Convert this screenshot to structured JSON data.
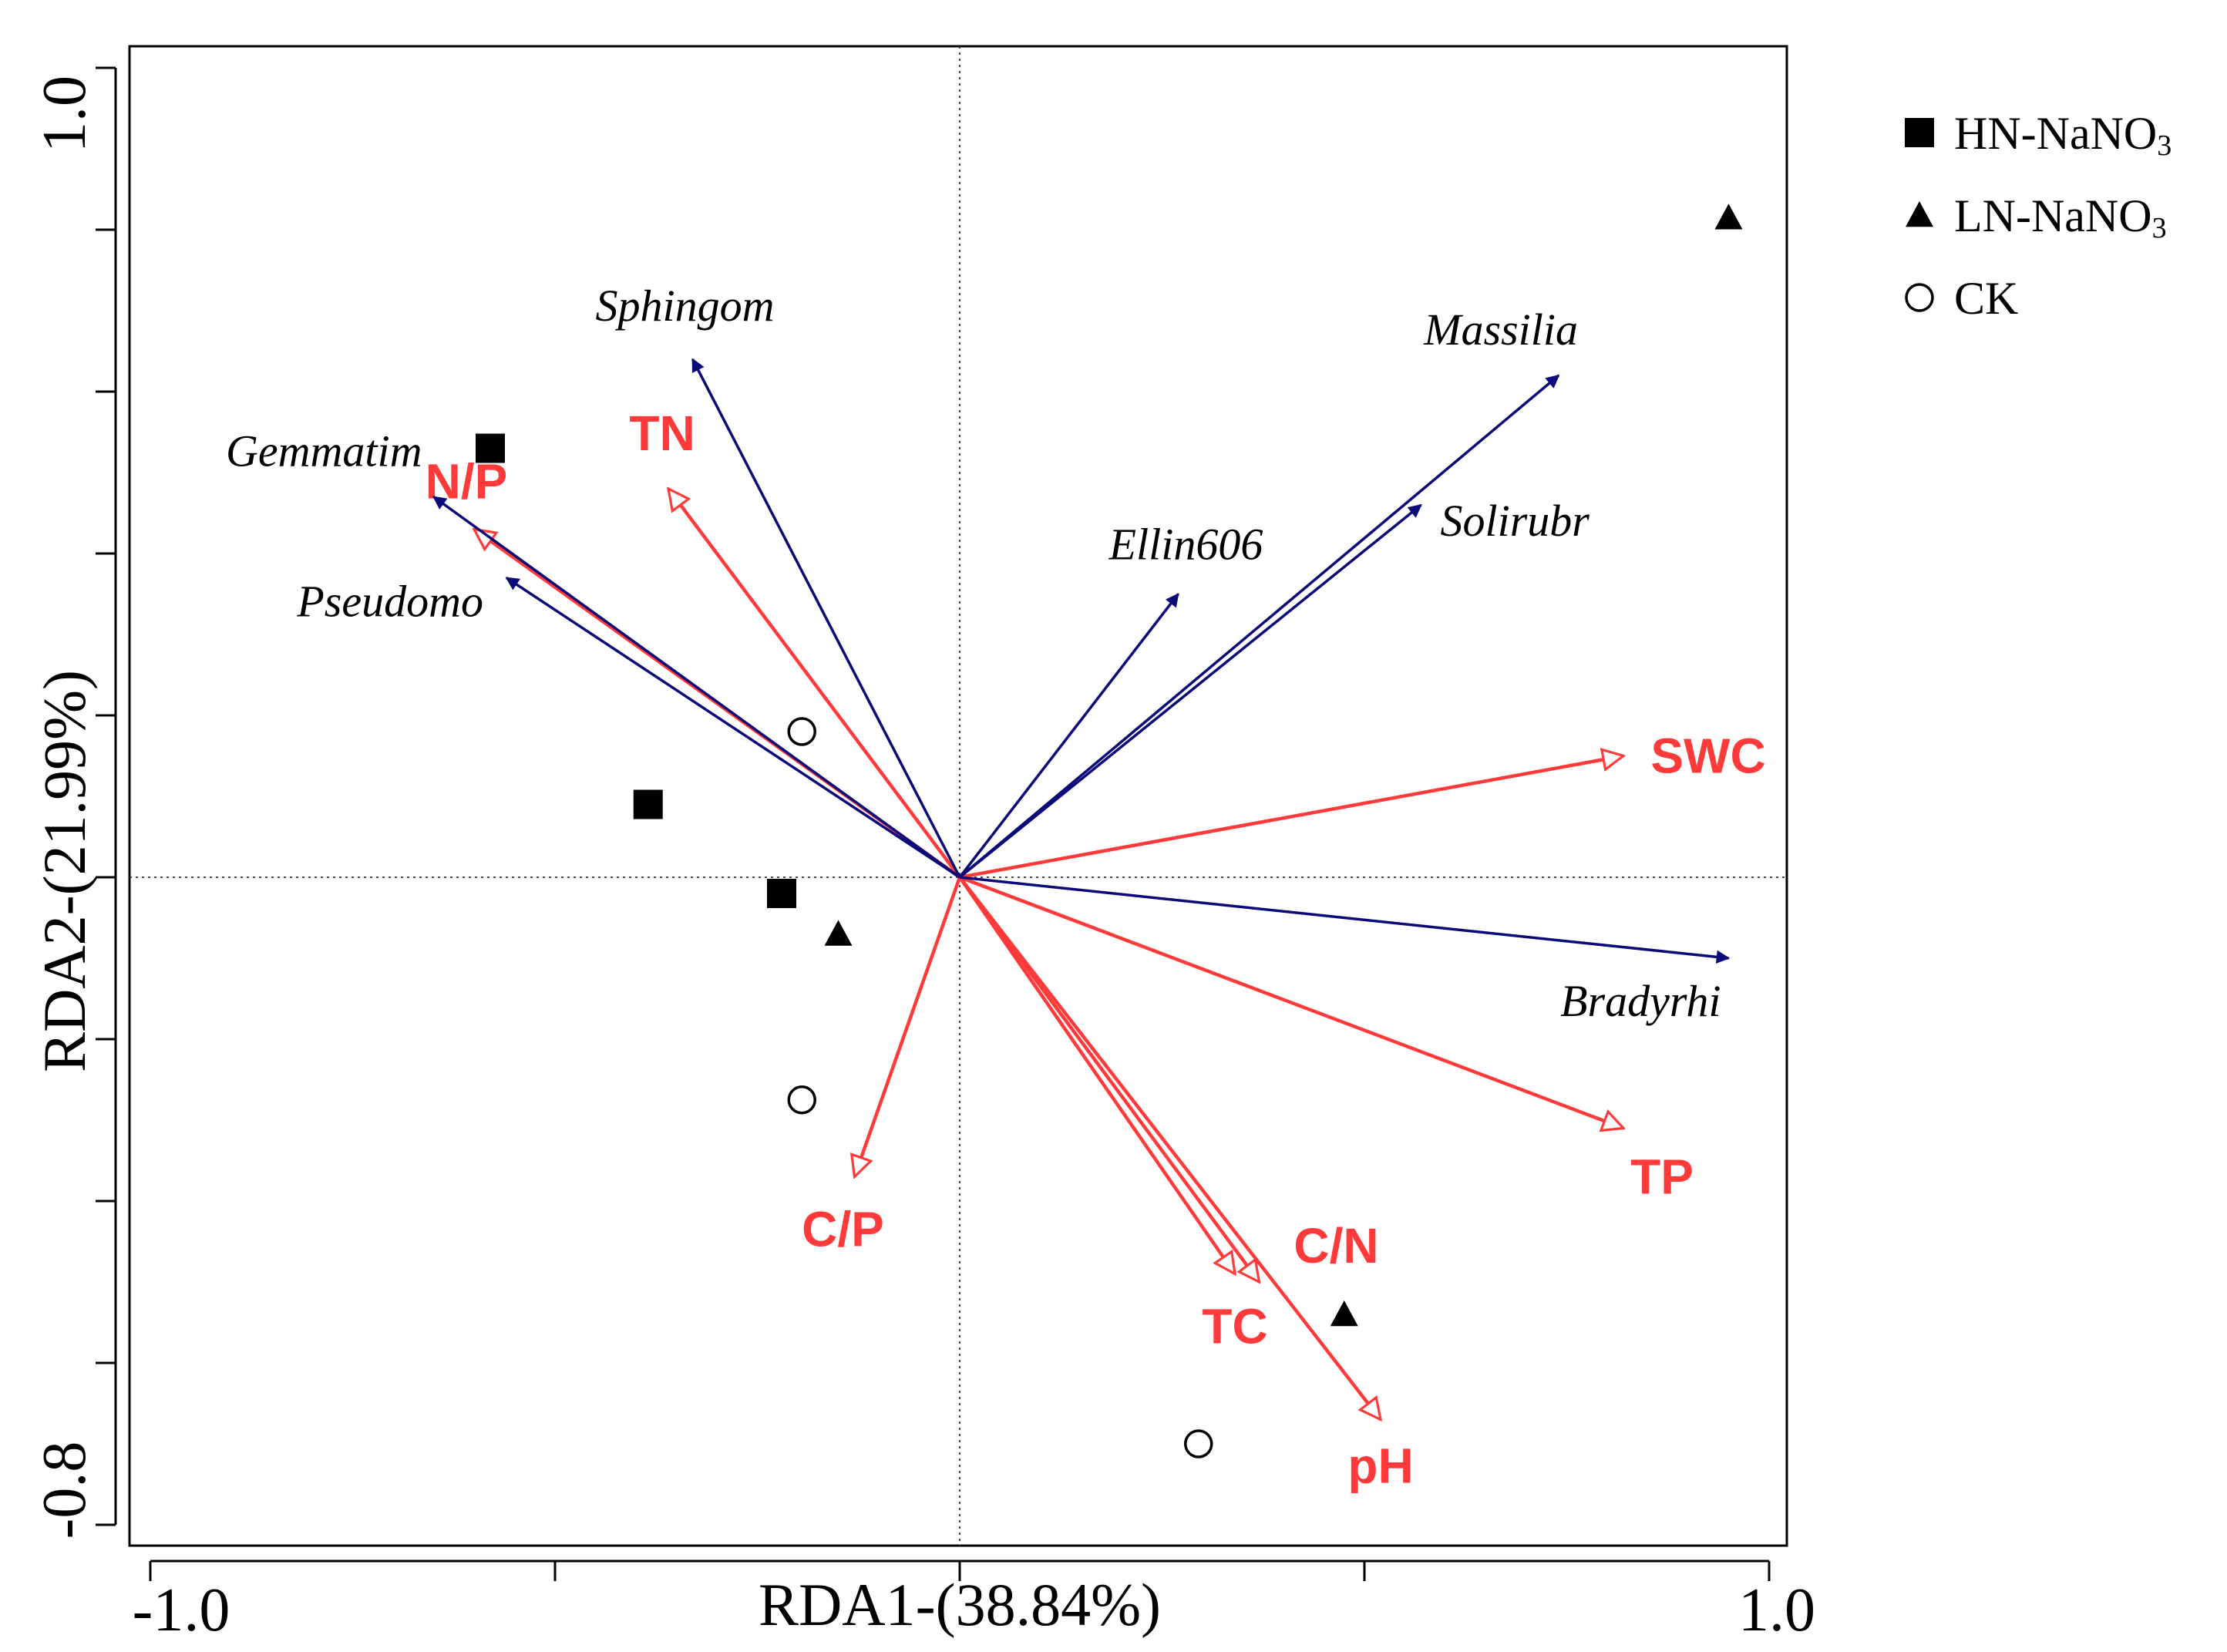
{
  "chart_data": {
    "type": "scatter",
    "subtype": "rda_biplot",
    "xlabel": "RDA1-(38.84%)",
    "ylabel": "RDA2-(21.99%)",
    "xlim": [
      -1.03,
      1.03
    ],
    "ylim": [
      -0.82,
      1.02
    ],
    "x_tick_values": [
      -1.0,
      -0.5,
      0.0,
      0.5,
      1.0
    ],
    "x_tick_labels": [
      "-1.0",
      "1.0"
    ],
    "y_tick_values": [
      -0.8,
      -0.6,
      -0.4,
      -0.2,
      0.0,
      0.2,
      0.4,
      0.6,
      0.8,
      1.0
    ],
    "y_tick_labels": [
      "-0.8",
      "1.0"
    ],
    "reference_lines": {
      "x": 0,
      "y": 0,
      "style": "dotted"
    },
    "colors": {
      "species": "#0a0a78",
      "environment": "#ff3a3a",
      "samples": "#000000"
    },
    "species_arrows": [
      {
        "label": "Sphingom",
        "x": -0.33,
        "y": 0.64
      },
      {
        "label": "Gemmatim",
        "x": -0.65,
        "y": 0.47
      },
      {
        "label": "Pseudomo",
        "x": -0.56,
        "y": 0.37
      },
      {
        "label": "Massilia",
        "x": 0.74,
        "y": 0.62
      },
      {
        "label": "Solirubr",
        "x": 0.57,
        "y": 0.46
      },
      {
        "label": "Ellin606",
        "x": 0.27,
        "y": 0.35
      },
      {
        "label": "Bradyrhi",
        "x": 0.95,
        "y": -0.1
      }
    ],
    "environment_arrows": [
      {
        "label": "N/P",
        "x": -0.6,
        "y": 0.43
      },
      {
        "label": "TN",
        "x": -0.36,
        "y": 0.48
      },
      {
        "label": "SWC",
        "x": 0.82,
        "y": 0.15
      },
      {
        "label": "TP",
        "x": 0.82,
        "y": -0.31
      },
      {
        "label": "C/P",
        "x": -0.13,
        "y": -0.37
      },
      {
        "label": "C/N",
        "x": 0.37,
        "y": -0.5
      },
      {
        "label": "TC",
        "x": 0.34,
        "y": -0.49
      },
      {
        "label": "pH",
        "x": 0.52,
        "y": -0.67
      }
    ],
    "series": [
      {
        "name": "HN-NaNO",
        "subscript": "3",
        "marker": "square",
        "points": [
          {
            "x": -0.58,
            "y": 0.53
          },
          {
            "x": -0.385,
            "y": 0.09
          },
          {
            "x": -0.22,
            "y": -0.02
          }
        ]
      },
      {
        "name": "LN-NaNO",
        "subscript": "3",
        "marker": "triangle",
        "points": [
          {
            "x": 0.95,
            "y": 0.815
          },
          {
            "x": -0.15,
            "y": -0.07
          },
          {
            "x": 0.475,
            "y": -0.54
          }
        ]
      },
      {
        "name": "CK",
        "subscript": "",
        "marker": "circle",
        "points": [
          {
            "x": -0.195,
            "y": 0.18
          },
          {
            "x": -0.195,
            "y": -0.275
          },
          {
            "x": 0.295,
            "y": -0.7
          }
        ]
      }
    ]
  }
}
